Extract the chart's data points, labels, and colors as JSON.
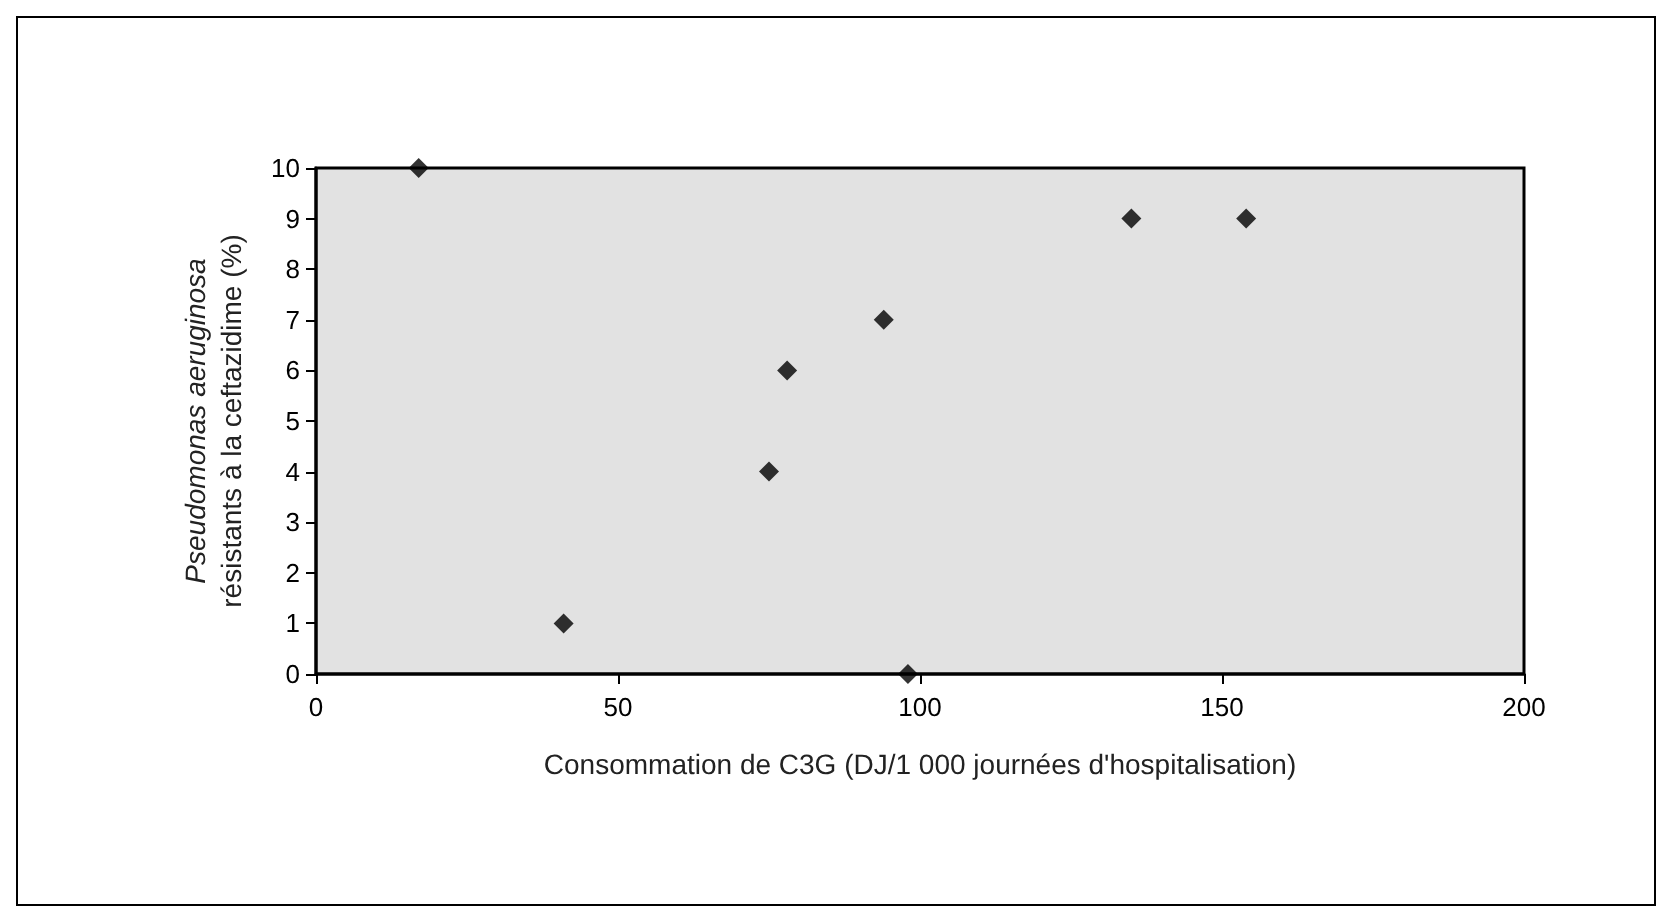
{
  "chart_data": {
    "type": "scatter",
    "xlabel": "Consommation de C3G (DJ/1 000 journées d'hospitalisation)",
    "ylabel": "Pseudomonas aeruginosa\nrésistants à la ceftazidime (%)",
    "x": [
      17,
      41,
      75,
      78,
      94,
      98,
      135,
      154
    ],
    "values": [
      10,
      1,
      4,
      6,
      7,
      0,
      9,
      9
    ],
    "color": "#000000",
    "marker": "diamond",
    "xlim": [
      0,
      200
    ],
    "xticks": [
      0,
      50,
      100,
      150,
      200
    ],
    "ylim": [
      0,
      10
    ],
    "yticks": [
      0,
      1,
      2,
      3,
      4,
      5,
      6,
      7,
      8,
      9,
      10
    ],
    "grid": false
  }
}
